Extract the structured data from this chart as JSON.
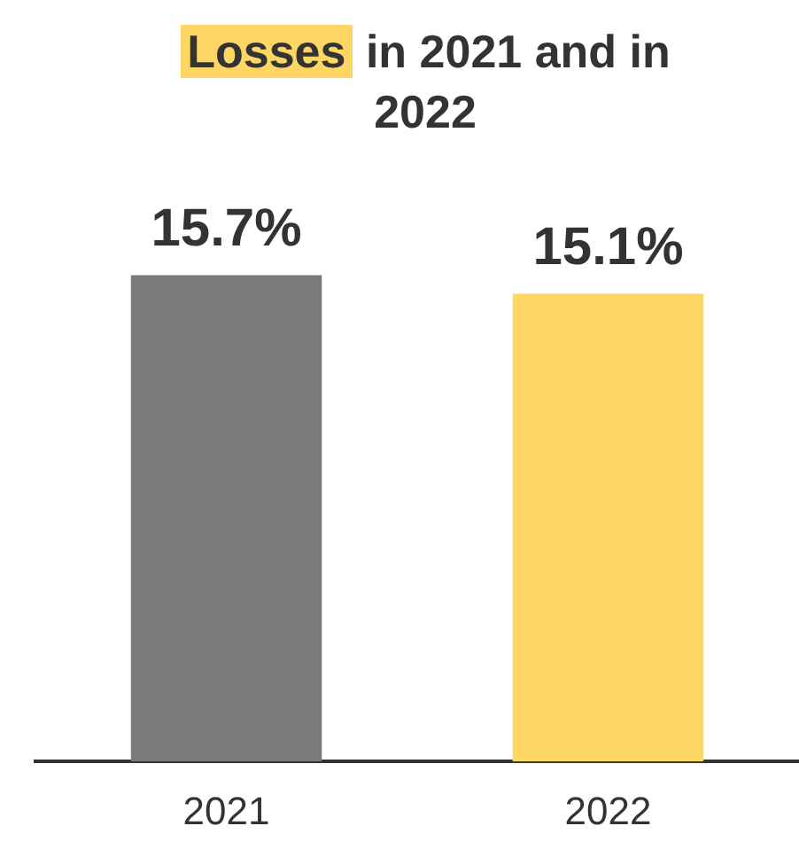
{
  "chart_data": {
    "type": "bar",
    "title": "Losses in 2021 and in 2022",
    "categories": [
      "2021",
      "2022"
    ],
    "values": [
      15.7,
      15.1
    ],
    "colors": [
      "#7a7a7a",
      "#fdd663"
    ],
    "value_labels": [
      "15.7%",
      "15.1%"
    ],
    "grid": false,
    "legend": false
  }
}
